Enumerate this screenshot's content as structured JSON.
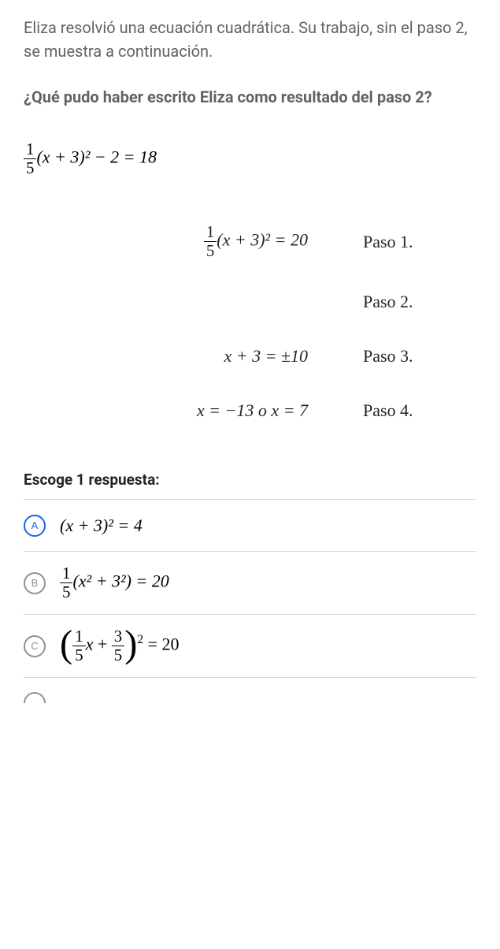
{
  "intro": "Eliza resolvió una ecuación cuadrática. Su trabajo, sin el paso 2, se muestra a continuación.",
  "question": "¿Qué pudo haber escrito Eliza como resultado del paso 2?",
  "initial_equation": {
    "frac_num": "1",
    "frac_den": "5",
    "rest": "(x + 3)² − 2 = 18"
  },
  "steps": [
    {
      "type": "frac",
      "frac_num": "1",
      "frac_den": "5",
      "rest": "(x + 3)² = 20",
      "label": "Paso 1."
    },
    {
      "type": "empty",
      "label": "Paso 2."
    },
    {
      "type": "plain",
      "text": "x + 3 = ±10",
      "label": "Paso 3."
    },
    {
      "type": "plain",
      "text": "x = −13 o x = 7",
      "label": "Paso 4."
    }
  ],
  "choose_label": "Escoge 1 respuesta:",
  "choices": {
    "A": {
      "letter": "A",
      "selected": true
    },
    "B": {
      "letter": "B",
      "selected": false
    },
    "C": {
      "letter": "C",
      "selected": false
    }
  },
  "choice_A_text": "(x + 3)² = 4",
  "choice_B": {
    "frac_num": "1",
    "frac_den": "5",
    "rest": "(x² + 3²) = 20"
  },
  "choice_C": {
    "f1_num": "1",
    "f1_den": "5",
    "f2_num": "3",
    "f2_den": "5",
    "tail": " = 20"
  },
  "colors": {
    "text_gray": "#5f6368",
    "border": "#d6d8da",
    "circle_gray": "#909296",
    "selected_blue": "#1865f2"
  }
}
